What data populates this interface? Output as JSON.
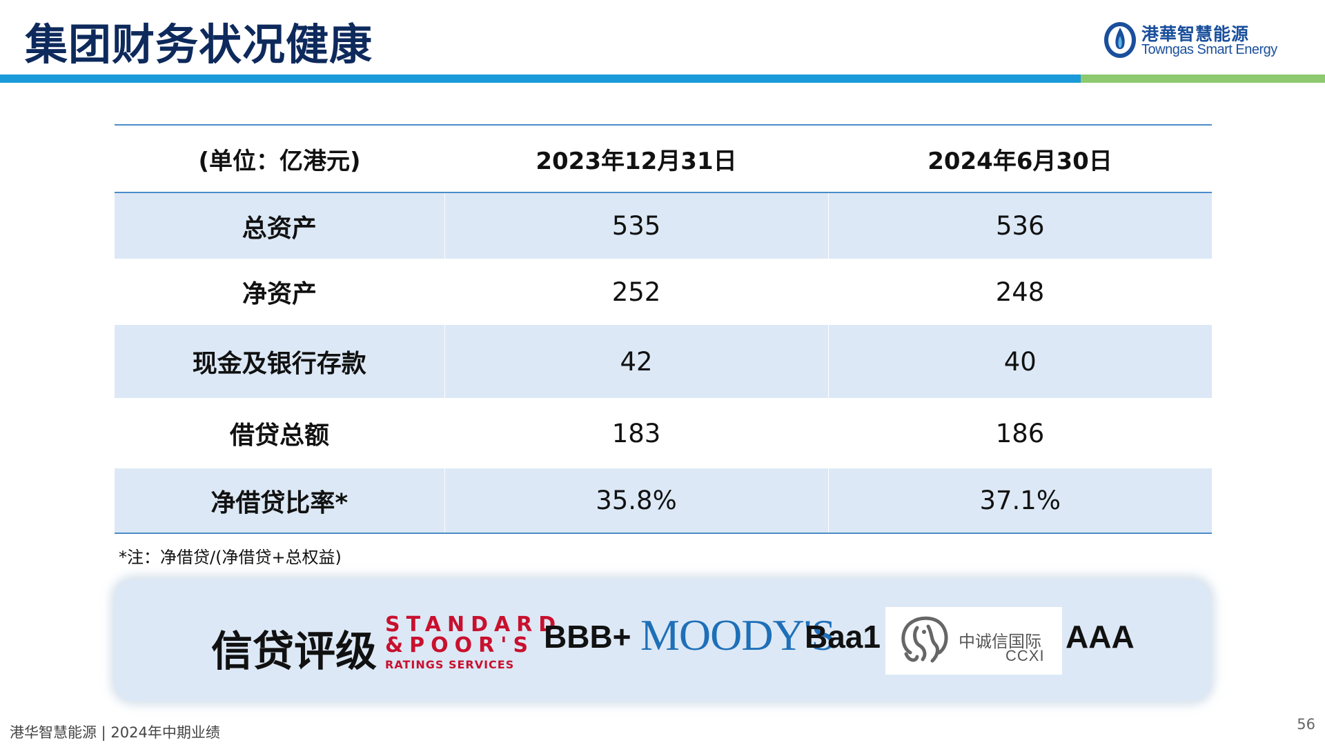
{
  "header": {
    "title": "集团财务状况健康",
    "logo": {
      "cn": "港華智慧能源",
      "en": "Towngas Smart Energy",
      "icon": "flame-icon"
    },
    "colors": {
      "title": "#0e2a5c",
      "band_blue": "#1a9ad9",
      "band_green": "#8dc96f"
    }
  },
  "table": {
    "headers": [
      "(单位：亿港元)",
      "2023年12月31日",
      "2024年6月30日"
    ],
    "rows": [
      {
        "label": "总资产",
        "v2023": "535",
        "v2024": "536"
      },
      {
        "label": "净资产",
        "v2023": "252",
        "v2024": "248"
      },
      {
        "label": "现金及银行存款",
        "v2023": "42",
        "v2024": "40"
      },
      {
        "label": "借贷总额",
        "v2023": "183",
        "v2024": "186"
      },
      {
        "label": "净借贷比率*",
        "v2023": "35.8%",
        "v2024": "37.1%"
      }
    ],
    "note": "*注：净借贷/(净借贷+总权益)",
    "colors": {
      "shade": "#dce8f5",
      "rule": "#4a8bc8"
    }
  },
  "ratings": {
    "title": "信贷评级",
    "sp": {
      "line1": "STANDARD",
      "line2": "&POOR'S",
      "line3": "RATINGS SERVICES",
      "rating": "BBB+"
    },
    "moodys": {
      "logo": "MOODY'S",
      "rating": "Baa1"
    },
    "ccxi": {
      "cn": "中诚信国际",
      "en": "CCXI",
      "rating": "AAA",
      "icon": "elephant-icon"
    }
  },
  "footer": {
    "text": "港华智慧能源 | 2024年中期业绩",
    "page": "56"
  }
}
